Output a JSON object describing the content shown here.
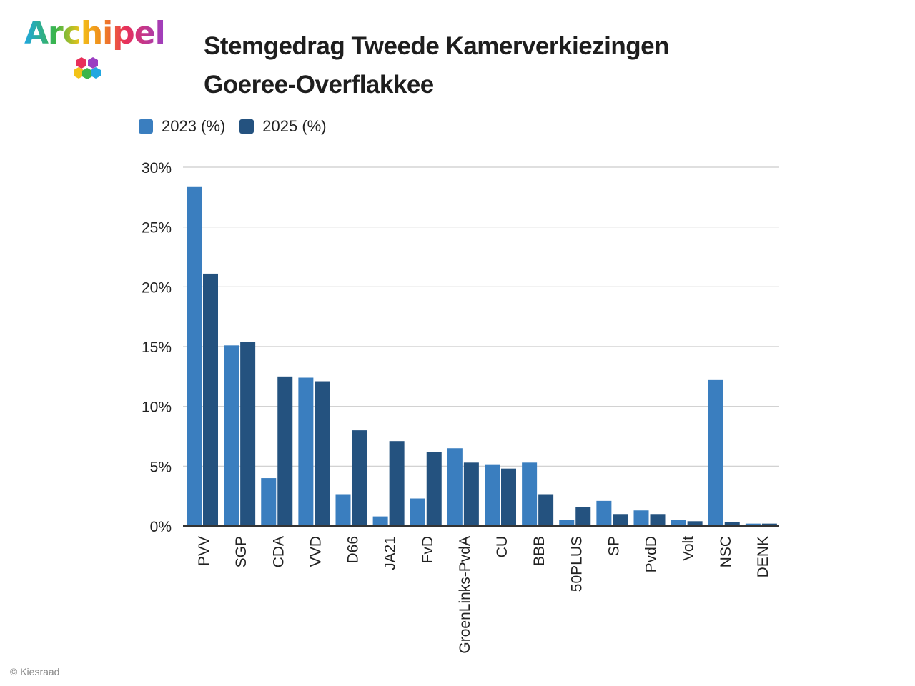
{
  "logo": {
    "text": "Archipel",
    "icon": "hex-cubes-icon"
  },
  "header": {
    "title_line1": "Stemgedrag Tweede Kamerverkiezingen",
    "title_line2": "Goeree-Overflakkee"
  },
  "credit": "© Kiesraad",
  "colors": {
    "series_2023": "#3a7ebf",
    "series_2025": "#24527f",
    "grid": "#cccccc",
    "axis": "#333333"
  },
  "chart_data": {
    "type": "bar",
    "title": "Stemgedrag Tweede Kamerverkiezingen Goeree-Overflakkee",
    "xlabel": "",
    "ylabel": "",
    "ylim": [
      0,
      30
    ],
    "ytick_values": [
      0,
      5,
      10,
      15,
      20,
      25,
      30
    ],
    "ytick_labels": [
      "0%",
      "5%",
      "10%",
      "15%",
      "20%",
      "25%",
      "30%"
    ],
    "legend_position": "top-left",
    "grid": true,
    "categories": [
      "PVV",
      "SGP",
      "CDA",
      "VVD",
      "D66",
      "JA21",
      "FvD",
      "GroenLinks-PvdA",
      "CU",
      "BBB",
      "50PLUS",
      "SP",
      "PvdD",
      "Volt",
      "NSC",
      "DENK"
    ],
    "series": [
      {
        "name": "2023 (%)",
        "values": [
          28.4,
          15.1,
          4.0,
          12.4,
          2.6,
          0.8,
          2.3,
          6.5,
          5.1,
          5.3,
          0.5,
          2.1,
          1.3,
          0.5,
          12.2,
          0.2
        ]
      },
      {
        "name": "2025 (%)",
        "values": [
          21.1,
          15.4,
          12.5,
          12.1,
          8.0,
          7.1,
          6.2,
          5.3,
          4.8,
          2.6,
          1.6,
          1.0,
          1.0,
          0.4,
          0.3,
          0.2
        ]
      }
    ]
  }
}
